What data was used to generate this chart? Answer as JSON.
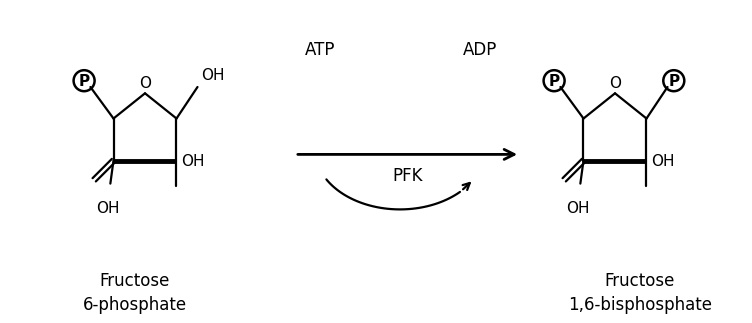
{
  "bg_color": "#ffffff",
  "text_color": "#000000",
  "line_color": "#000000",
  "title_left": "Fructose\n6-phosphate",
  "title_right": "Fructose\n1,6-bisphosphate",
  "atp_label": "ATP",
  "adp_label": "ADP",
  "pfk_label": "PFK",
  "p_label": "P",
  "lw": 1.6,
  "lw_bold": 3.5,
  "lw_ring": 1.6,
  "font_size": 12,
  "font_size_label": 11,
  "font_size_title": 12
}
